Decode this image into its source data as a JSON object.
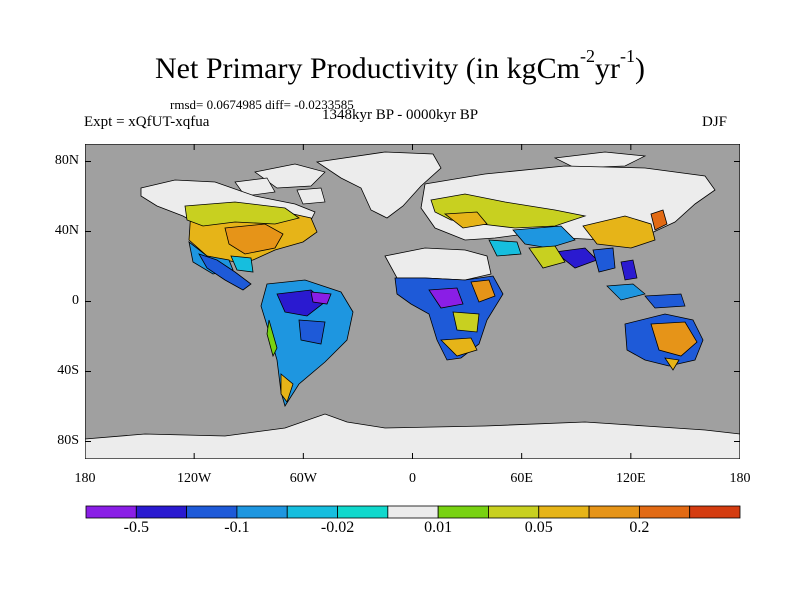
{
  "title": {
    "main": "Net Primary Productivity (in kgCm",
    "sup1": "-2",
    "mid": "yr",
    "sup2": "-1",
    "close": ")"
  },
  "stats": "rmsd= 0.0674985 diff= -0.0233585",
  "experiment": "Expt = xQfUT-xqfua",
  "period": "1348kyr BP - 0000kyr BP",
  "season": "DJF",
  "map": {
    "projection": "cylindrical-equidistant",
    "lat_range": [
      -90,
      90
    ],
    "lon_range": [
      -180,
      180
    ],
    "lat_ticks": [
      "80N",
      "40N",
      "0",
      "40S",
      "80S"
    ],
    "lat_tick_values": [
      80,
      40,
      0,
      -40,
      -80
    ],
    "lon_ticks": [
      "180",
      "120W",
      "60W",
      "0",
      "60E",
      "120E",
      "180"
    ],
    "lon_tick_values": [
      -180,
      -120,
      -60,
      0,
      60,
      120,
      180
    ],
    "ocean_color": "#a0a0a0",
    "no_data_color": "#ececec"
  },
  "colorbar": {
    "colors": [
      "#8a1ee6",
      "#2a1ad0",
      "#1e5ad8",
      "#1e96e0",
      "#16bede",
      "#10d8cc",
      "#ececec",
      "#78d212",
      "#c8d020",
      "#e6b418",
      "#e69418",
      "#e26a14",
      "#d43c10"
    ],
    "labels": [
      "-0.5",
      "-0.1",
      "-0.02",
      "0.01",
      "0.05",
      "0.2"
    ]
  }
}
